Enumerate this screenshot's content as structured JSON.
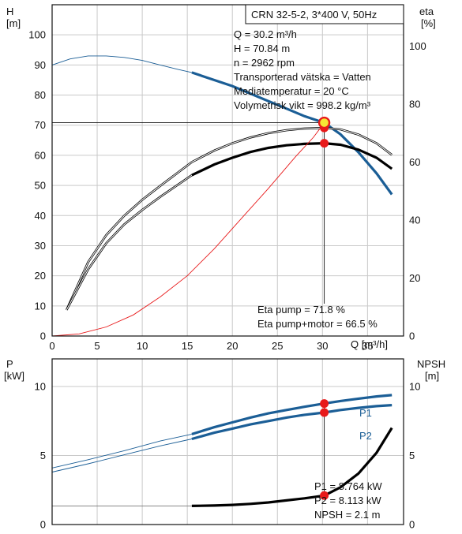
{
  "title_box": "CRN 32-5-2, 3*400 V, 50Hz",
  "top": {
    "ylabel_left": [
      "H",
      "[m]"
    ],
    "ylabel_right": [
      "eta",
      "[%]"
    ],
    "xlabel": "Q [m³/h]",
    "info": [
      "Q = 30.2 m³/h",
      "H = 70.84 m",
      "n = 2962 rpm",
      "Transporterad vätska = Vatten",
      "Mediatemperatur = 20 °C",
      "Volymetrisk vikt = 998.2 kg/m³"
    ],
    "eta_info": [
      "Eta pump = 71.8 %",
      "Eta pump+motor = 66.5 %"
    ]
  },
  "bottom": {
    "ylabel_left": [
      "P",
      "[kW]"
    ],
    "ylabel_right": [
      "NPSH",
      "[m]"
    ],
    "info": [
      "P1 = 8.764 kW",
      "P2 = 8.113 kW",
      "NPSH = 2.1 m"
    ]
  },
  "colors": {
    "blue": "#1b5e96",
    "red": "#e8191a",
    "black": "#000000",
    "yellow": "#f6e634"
  },
  "chart_data": [
    {
      "type": "line",
      "title": "CRN 32-5-2, 3*400 V, 50Hz",
      "xlabel": "Q [m³/h]",
      "ylabel": "H [m]",
      "y2label": "eta [%]",
      "xlim": [
        0,
        39
      ],
      "ylim": [
        0,
        110
      ],
      "y2lim": [
        0,
        114.3
      ],
      "xticks": [
        0,
        5,
        10,
        15,
        20,
        25,
        30,
        35
      ],
      "yticks": [
        0,
        10,
        20,
        30,
        40,
        50,
        60,
        70,
        80,
        90,
        100
      ],
      "y2ticks": [
        0,
        20,
        40,
        60,
        80,
        100
      ],
      "grid": true,
      "duty_point": {
        "x": 30.2,
        "y": 70.84
      },
      "series": [
        {
          "name": "H",
          "axis": "left",
          "color": "#1b5e96",
          "thick_from": 15.5,
          "x": [
            0,
            2,
            4,
            6,
            8,
            10,
            12,
            14,
            15.5,
            18,
            20,
            22,
            24,
            26,
            28,
            30.2,
            32,
            34,
            36,
            37.7
          ],
          "y": [
            90,
            92,
            93,
            93,
            92.5,
            91.5,
            90,
            88.5,
            87.5,
            85,
            83,
            80.5,
            78,
            75.5,
            73,
            70.8,
            67,
            61,
            54,
            47
          ]
        },
        {
          "name": "Eta pump",
          "axis": "right",
          "color": "#000000",
          "thick_from": 15.5,
          "x": [
            1.6,
            4,
            6,
            8,
            10,
            12,
            15.5,
            18,
            20,
            22,
            24,
            26,
            28,
            30.2,
            32,
            34,
            36,
            37.7
          ],
          "y": [
            9,
            25.5,
            34.8,
            41.5,
            47,
            51.8,
            60,
            64,
            66.5,
            68.5,
            70,
            71,
            71.6,
            71.8,
            71.3,
            69.5,
            66.5,
            62.5
          ]
        },
        {
          "name": "Eta pump+motor",
          "axis": "right",
          "color": "#000000",
          "thick_from": 15.5,
          "x": [
            1.6,
            4,
            6,
            8,
            10,
            12,
            15.5,
            18,
            20,
            22,
            24,
            26,
            28,
            30.2,
            32,
            34,
            36,
            37.7
          ],
          "y": [
            9,
            23,
            32,
            38.5,
            43.5,
            48,
            55.5,
            59.2,
            61.5,
            63.5,
            64.9,
            65.8,
            66.3,
            66.5,
            66,
            64.3,
            61.5,
            57.7
          ]
        },
        {
          "name": "",
          "axis": "left",
          "color": "#e8191a",
          "thin": true,
          "x": [
            0,
            3,
            6,
            9,
            12,
            15,
            18,
            21,
            24,
            27,
            29,
            30.2
          ],
          "y": [
            0,
            0.7,
            3,
            7,
            13,
            20,
            29,
            39,
            49,
            59.5,
            66,
            70.8
          ]
        }
      ]
    },
    {
      "type": "line",
      "xlabel": "Q [m³/h]",
      "ylabel": "P [kW]",
      "y2label": "NPSH [m]",
      "xlim": [
        0,
        39
      ],
      "ylim": [
        0,
        12
      ],
      "yticks": [
        0,
        5,
        10
      ],
      "y2ticks": [
        0,
        5,
        10
      ],
      "grid": true,
      "series": [
        {
          "name": "P1",
          "color": "#1b5e96",
          "thick_from": 15.5,
          "x": [
            0,
            4,
            8,
            12,
            15.5,
            18,
            20,
            22,
            24,
            26,
            28,
            30.2,
            32,
            34,
            36,
            37.7
          ],
          "y": [
            4.1,
            4.7,
            5.35,
            6.05,
            6.55,
            7.05,
            7.4,
            7.75,
            8.05,
            8.3,
            8.53,
            8.764,
            8.95,
            9.12,
            9.28,
            9.38
          ]
        },
        {
          "name": "P2",
          "color": "#1b5e96",
          "thick_from": 15.5,
          "x": [
            0,
            4,
            8,
            12,
            15.5,
            18,
            20,
            22,
            24,
            26,
            28,
            30.2,
            32,
            34,
            36,
            37.7
          ],
          "y": [
            3.8,
            4.4,
            5.05,
            5.7,
            6.2,
            6.65,
            6.95,
            7.25,
            7.5,
            7.75,
            7.95,
            8.113,
            8.3,
            8.45,
            8.58,
            8.65
          ]
        },
        {
          "name": "NPSH",
          "color": "#000000",
          "thick_from": 15.5,
          "x": [
            0,
            15.5,
            18,
            20,
            22,
            24,
            26,
            28,
            30.2,
            32,
            34,
            36,
            37.7
          ],
          "y": [
            1.35,
            1.35,
            1.38,
            1.42,
            1.5,
            1.6,
            1.75,
            1.9,
            2.1,
            2.7,
            3.7,
            5.2,
            7.0
          ]
        }
      ],
      "markers": [
        {
          "x": 30.2,
          "y": 8.764
        },
        {
          "x": 30.2,
          "y": 8.113
        },
        {
          "x": 30.2,
          "y": 2.1
        }
      ]
    }
  ]
}
